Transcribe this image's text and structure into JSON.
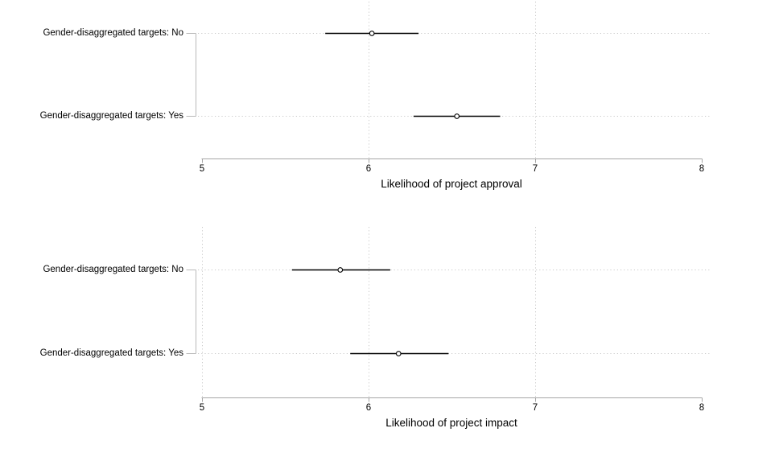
{
  "colors": {
    "ci_line": "#000000",
    "marker_fill": "#ffffff",
    "marker_stroke": "#000000",
    "gridline": "#c9c9c9",
    "axis": "#a6a6a6",
    "bracket": "#b9b9b9",
    "text": "#000000",
    "background": "#ffffff"
  },
  "chart_data": [
    {
      "type": "scatter",
      "subtype": "horizontal-coefplot-with-ci",
      "xlabel": "Likelihood of project approval",
      "xlim": [
        5,
        8
      ],
      "xticks": [
        5,
        6,
        7,
        8
      ],
      "x_gridlines": [
        6,
        7
      ],
      "grid": "dotted",
      "legend": "none",
      "categories": [
        "Gender-disaggregated targets: No",
        "Gender-disaggregated targets: Yes"
      ],
      "points": [
        {
          "label": "Gender-disaggregated targets: No",
          "estimate": 6.02,
          "ci_low": 5.74,
          "ci_high": 6.3
        },
        {
          "label": "Gender-disaggregated targets: Yes",
          "estimate": 6.53,
          "ci_low": 6.27,
          "ci_high": 6.79
        }
      ]
    },
    {
      "type": "scatter",
      "subtype": "horizontal-coefplot-with-ci",
      "xlabel": "Likelihood of project impact",
      "xlim": [
        5,
        8
      ],
      "xticks": [
        5,
        6,
        7,
        8
      ],
      "x_gridlines": [
        5,
        6,
        7
      ],
      "grid": "dotted",
      "legend": "none",
      "categories": [
        "Gender-disaggregated targets: No",
        "Gender-disaggregated targets: Yes"
      ],
      "points": [
        {
          "label": "Gender-disaggregated targets: No",
          "estimate": 5.83,
          "ci_low": 5.54,
          "ci_high": 6.13
        },
        {
          "label": "Gender-disaggregated targets: Yes",
          "estimate": 6.18,
          "ci_low": 5.89,
          "ci_high": 6.48
        }
      ]
    }
  ]
}
